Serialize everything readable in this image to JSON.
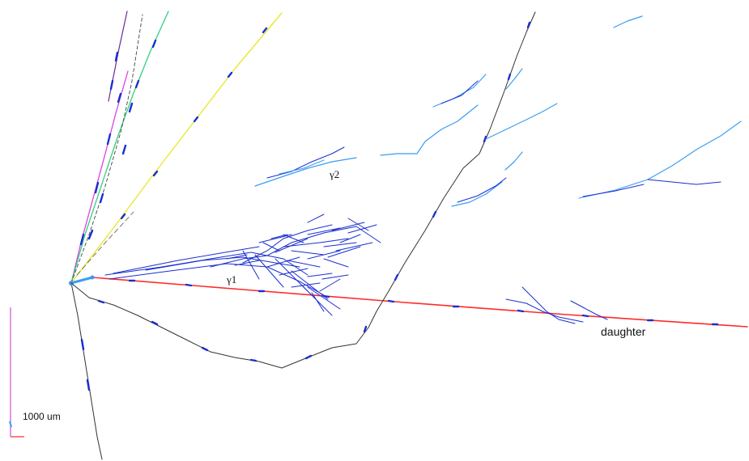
{
  "labels": {
    "gamma1": "γ1",
    "gamma2": "γ2",
    "daughter": "daughter"
  },
  "scale_bar": {
    "text": "1000 um"
  },
  "colors": {
    "background": "#ffffff",
    "primary_track": "#ff2a2a",
    "shower_track": "#1a2fd0",
    "low_energy_track": "#3a9cf0",
    "black_track": "#333333",
    "yellow_track": "#e8e830",
    "green_track": "#30d080",
    "magenta_track": "#e040e0",
    "purple_track": "#6a2a9a",
    "scale_vertical": "#d050d0",
    "scale_horizontal": "#ff3030"
  }
}
